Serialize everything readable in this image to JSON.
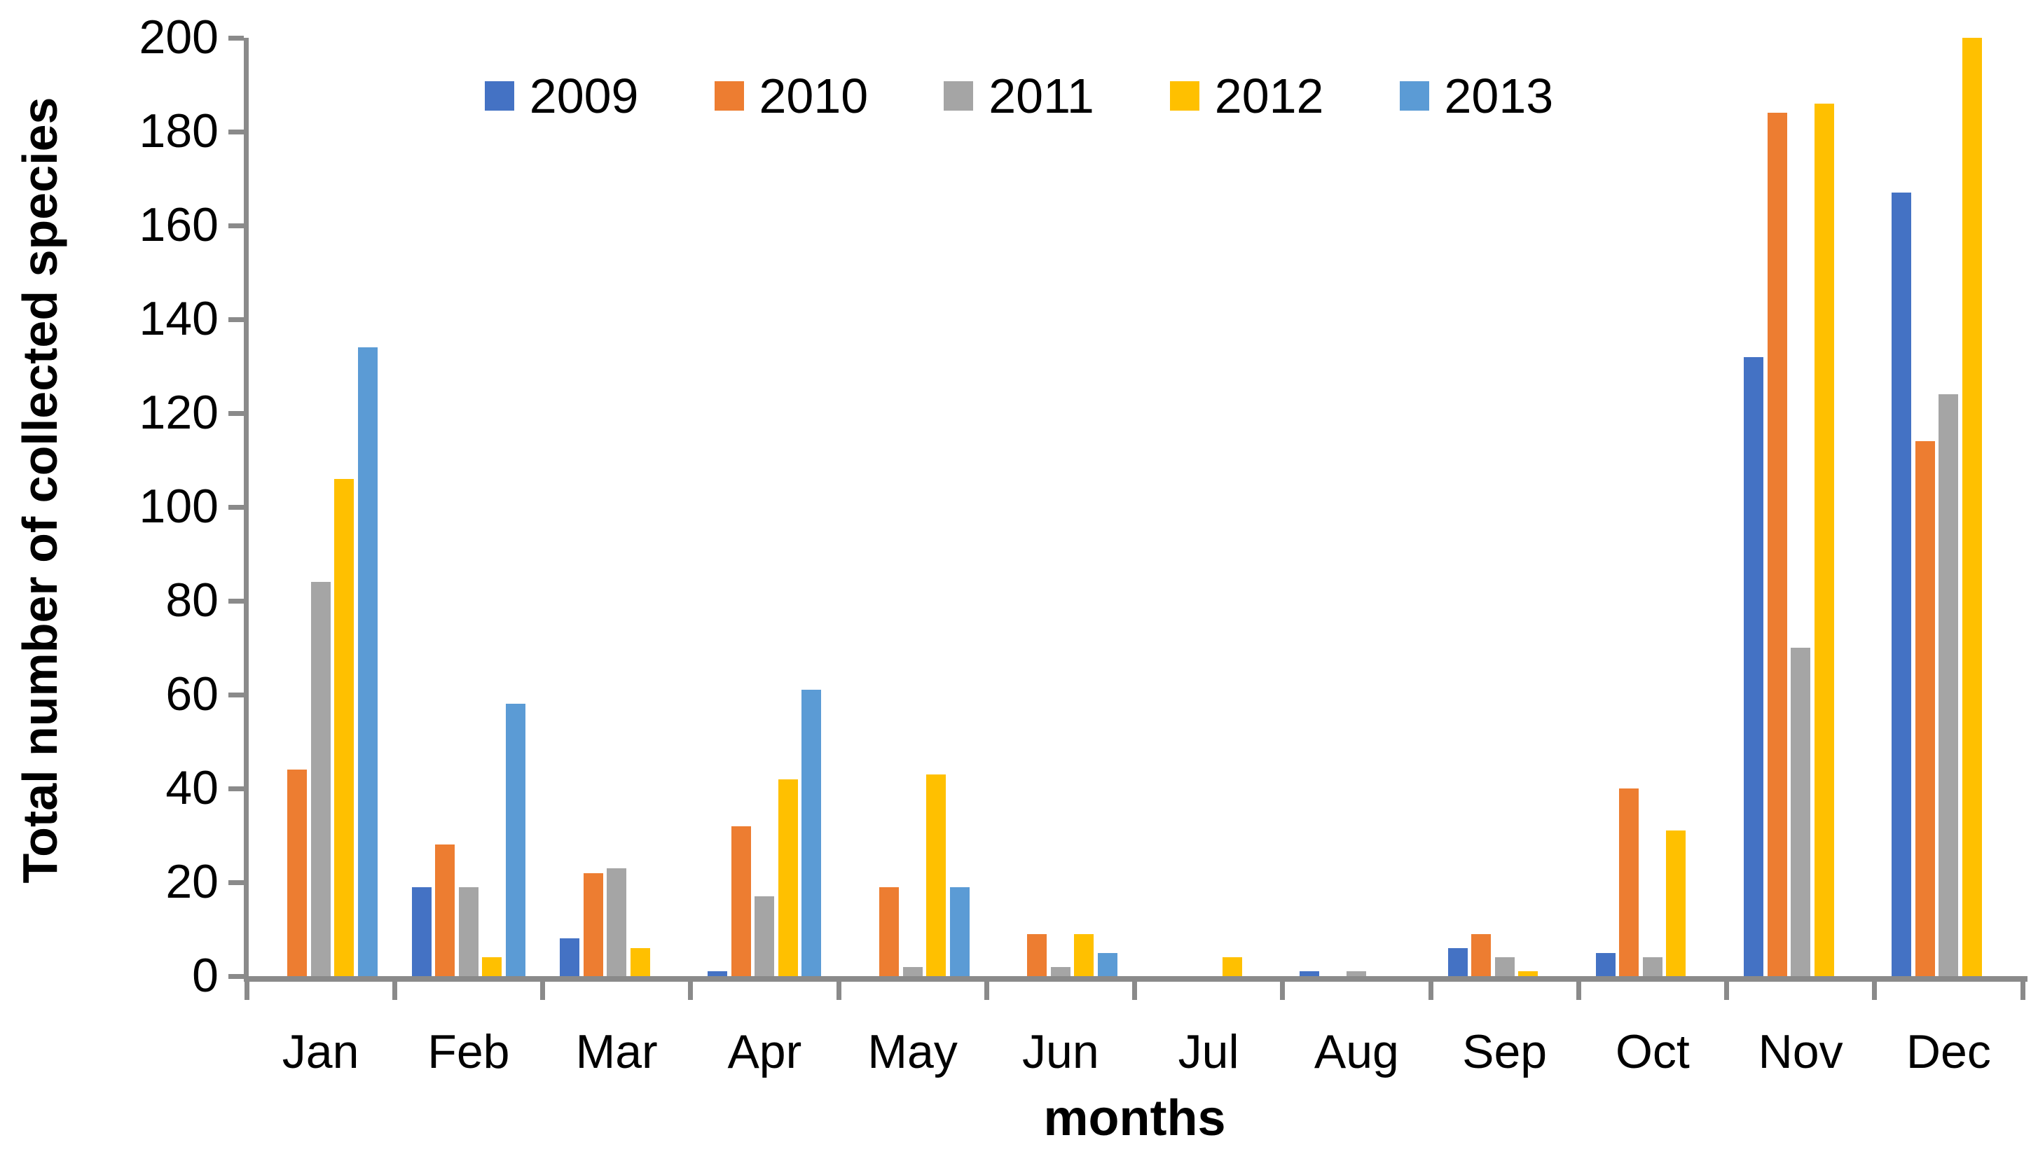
{
  "chart_data": {
    "type": "bar",
    "title": "",
    "xlabel": "months",
    "ylabel": "Total number of collected species",
    "categories": [
      "Jan",
      "Feb",
      "Mar",
      "Apr",
      "May",
      "Jun",
      "Jul",
      "Aug",
      "Sep",
      "Oct",
      "Nov",
      "Dec"
    ],
    "series": [
      {
        "name": "2009",
        "color": "#4472C4",
        "values": [
          0,
          19,
          8,
          1,
          0,
          0,
          0,
          1,
          6,
          5,
          132,
          167
        ]
      },
      {
        "name": "2010",
        "color": "#ED7D31",
        "values": [
          44,
          28,
          22,
          32,
          19,
          9,
          0,
          0,
          9,
          40,
          184,
          114
        ]
      },
      {
        "name": "2011",
        "color": "#A5A5A5",
        "values": [
          84,
          19,
          23,
          17,
          2,
          2,
          0,
          1,
          4,
          4,
          70,
          124
        ]
      },
      {
        "name": "2012",
        "color": "#FFC000",
        "values": [
          106,
          4,
          6,
          42,
          43,
          9,
          4,
          0,
          1,
          31,
          186,
          200
        ]
      },
      {
        "name": "2013",
        "color": "#5B9BD5",
        "values": [
          134,
          58,
          0,
          61,
          19,
          5,
          0,
          0,
          0,
          0,
          0,
          0
        ]
      }
    ],
    "ylim": [
      0,
      200
    ],
    "yticks": [
      0,
      20,
      40,
      60,
      80,
      100,
      120,
      140,
      160,
      180,
      200
    ],
    "grid": false,
    "legend_position": "top",
    "axis_color": "#8A8A8A",
    "text_color": "#000000",
    "background": "#FFFFFF"
  }
}
